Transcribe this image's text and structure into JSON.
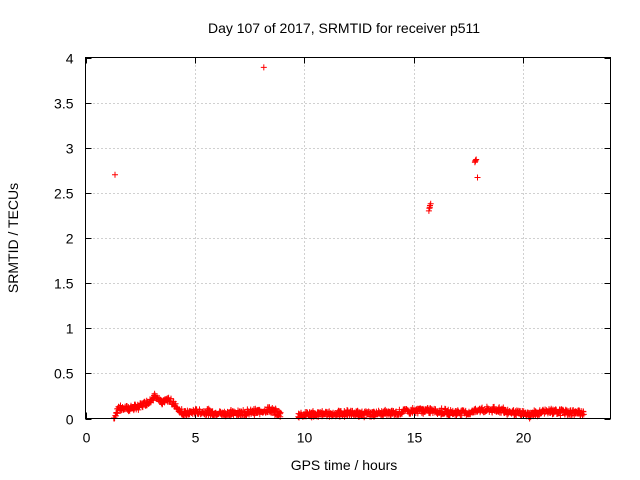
{
  "chart_data": {
    "type": "scatter",
    "title": "Day 107 of 2017, SRMTID for receiver p511",
    "xlabel": "GPS time / hours",
    "ylabel": "SRMTID / TECUs",
    "xlim": [
      0,
      24
    ],
    "ylim": [
      0,
      4
    ],
    "x_ticks": [
      0,
      5,
      10,
      15,
      20
    ],
    "x_tick_labels": [
      "0",
      "5",
      "10",
      "15",
      "20"
    ],
    "y_ticks": [
      0,
      0.5,
      1,
      1.5,
      2,
      2.5,
      3,
      3.5,
      4
    ],
    "y_tick_labels": [
      "0",
      "0.5",
      "1",
      "1.5",
      "2",
      "2.5",
      "3",
      "3.5",
      "4"
    ],
    "grid": true,
    "marker": "plus",
    "color": "#ff0000",
    "series": [
      {
        "name": "SRMTID",
        "outliers": [
          {
            "x": 1.35,
            "y": 2.7
          },
          {
            "x": 8.15,
            "y": 3.89
          },
          {
            "x": 15.7,
            "y": 2.3
          },
          {
            "x": 15.72,
            "y": 2.33
          },
          {
            "x": 15.75,
            "y": 2.36
          },
          {
            "x": 15.78,
            "y": 2.38
          },
          {
            "x": 15.74,
            "y": 2.34
          },
          {
            "x": 17.8,
            "y": 2.84
          },
          {
            "x": 17.83,
            "y": 2.86
          },
          {
            "x": 17.86,
            "y": 2.87
          },
          {
            "x": 17.82,
            "y": 2.85
          },
          {
            "x": 17.92,
            "y": 2.67
          }
        ],
        "baseline_profile": [
          {
            "x": 1.3,
            "y": 0.0
          },
          {
            "x": 1.5,
            "y": 0.12
          },
          {
            "x": 2.0,
            "y": 0.11
          },
          {
            "x": 2.5,
            "y": 0.14
          },
          {
            "x": 3.0,
            "y": 0.2
          },
          {
            "x": 3.2,
            "y": 0.26
          },
          {
            "x": 3.5,
            "y": 0.16
          },
          {
            "x": 3.8,
            "y": 0.22
          },
          {
            "x": 4.2,
            "y": 0.12
          },
          {
            "x": 4.5,
            "y": 0.05
          },
          {
            "x": 5.0,
            "y": 0.08
          },
          {
            "x": 6.0,
            "y": 0.06
          },
          {
            "x": 7.0,
            "y": 0.06
          },
          {
            "x": 7.8,
            "y": 0.07
          },
          {
            "x": 8.4,
            "y": 0.1
          },
          {
            "x": 8.9,
            "y": 0.05
          },
          {
            "x": 9.8,
            "y": 0.04
          },
          {
            "x": 11.0,
            "y": 0.05
          },
          {
            "x": 12.0,
            "y": 0.06
          },
          {
            "x": 13.0,
            "y": 0.05
          },
          {
            "x": 14.0,
            "y": 0.06
          },
          {
            "x": 14.8,
            "y": 0.08
          },
          {
            "x": 15.5,
            "y": 0.09
          },
          {
            "x": 16.5,
            "y": 0.07
          },
          {
            "x": 17.5,
            "y": 0.06
          },
          {
            "x": 18.0,
            "y": 0.09
          },
          {
            "x": 18.8,
            "y": 0.1
          },
          {
            "x": 19.5,
            "y": 0.07
          },
          {
            "x": 20.3,
            "y": 0.04
          },
          {
            "x": 21.0,
            "y": 0.08
          },
          {
            "x": 22.0,
            "y": 0.07
          },
          {
            "x": 22.8,
            "y": 0.06
          }
        ]
      }
    ]
  }
}
